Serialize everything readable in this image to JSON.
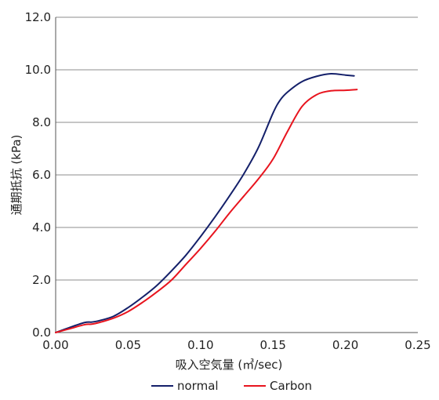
{
  "chart_data": {
    "type": "line",
    "title": "",
    "xlabel": "吸入空気量 (㎥/sec)",
    "ylabel": "通期抵抗 (kPa)",
    "xlim": [
      0,
      0.25
    ],
    "ylim": [
      0,
      12
    ],
    "x_ticks": [
      "0.00",
      "0.05",
      "0.10",
      "0.15",
      "0.20",
      "0.25"
    ],
    "y_ticks": [
      "0.0",
      "2.0",
      "4.0",
      "6.0",
      "8.0",
      "10.0",
      "12.0"
    ],
    "grid": {
      "horizontal": true,
      "vertical": false
    },
    "legend_position": "bottom",
    "series": [
      {
        "name": "normal",
        "color": "#14206a",
        "x": [
          0.0,
          0.01,
          0.02,
          0.025,
          0.03,
          0.04,
          0.05,
          0.06,
          0.07,
          0.08,
          0.09,
          0.1,
          0.11,
          0.12,
          0.13,
          0.14,
          0.15,
          0.155,
          0.16,
          0.17,
          0.18,
          0.19,
          0.2,
          0.206
        ],
        "y": [
          0.0,
          0.2,
          0.38,
          0.4,
          0.45,
          0.62,
          0.95,
          1.35,
          1.8,
          2.35,
          2.95,
          3.65,
          4.4,
          5.2,
          6.05,
          7.05,
          8.35,
          8.85,
          9.15,
          9.55,
          9.75,
          9.85,
          9.8,
          9.77
        ]
      },
      {
        "name": "Carbon",
        "color": "#e8141e",
        "x": [
          0.0,
          0.01,
          0.02,
          0.025,
          0.03,
          0.04,
          0.05,
          0.06,
          0.07,
          0.08,
          0.09,
          0.1,
          0.11,
          0.12,
          0.13,
          0.14,
          0.15,
          0.16,
          0.17,
          0.18,
          0.19,
          0.2,
          0.208
        ],
        "y": [
          0.0,
          0.15,
          0.3,
          0.32,
          0.38,
          0.55,
          0.8,
          1.15,
          1.55,
          2.0,
          2.6,
          3.2,
          3.85,
          4.55,
          5.2,
          5.85,
          6.6,
          7.65,
          8.6,
          9.05,
          9.2,
          9.22,
          9.25
        ]
      }
    ]
  }
}
